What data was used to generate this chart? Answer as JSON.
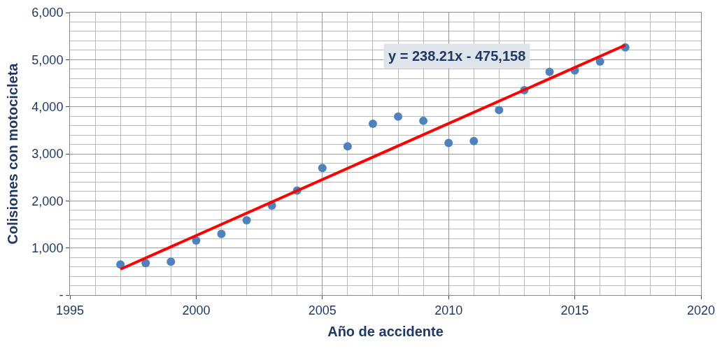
{
  "chart_data": {
    "type": "scatter",
    "xlabel": "Año de accidente",
    "ylabel": "Colisiones con motocicleta",
    "x": [
      1997,
      1998,
      1999,
      2000,
      2001,
      2002,
      2003,
      2004,
      2005,
      2006,
      2007,
      2008,
      2009,
      2010,
      2011,
      2012,
      2013,
      2014,
      2015,
      2016,
      2017
    ],
    "series": [
      {
        "color": "#4f81bd",
        "marker": "circle",
        "values": [
          650,
          680,
          710,
          1160,
          1300,
          1590,
          1900,
          2220,
          2700,
          3160,
          3640,
          3790,
          3700,
          3230,
          3270,
          3930,
          4350,
          4740,
          4770,
          4960,
          5260
        ]
      },
      {
        "type": "line",
        "color": "#ff0000",
        "x": [
          1997,
          2017
        ],
        "values": [
          550,
          5310
        ]
      }
    ],
    "xlim": [
      1995,
      2020
    ],
    "xticks": [
      1995,
      2000,
      2005,
      2010,
      2015,
      2020
    ],
    "ylim": [
      0,
      6000
    ],
    "yticks": [
      {
        "value": 0,
        "label": "-"
      },
      {
        "value": 1000,
        "label": "1,000"
      },
      {
        "value": 2000,
        "label": "2,000"
      },
      {
        "value": 3000,
        "label": "3,000"
      },
      {
        "value": 4000,
        "label": "4,000"
      },
      {
        "value": 5000,
        "label": "5,000"
      },
      {
        "value": 6000,
        "label": "6,000"
      }
    ],
    "grid": true,
    "annotations": [
      "y = 238.21x - 475,158"
    ]
  }
}
